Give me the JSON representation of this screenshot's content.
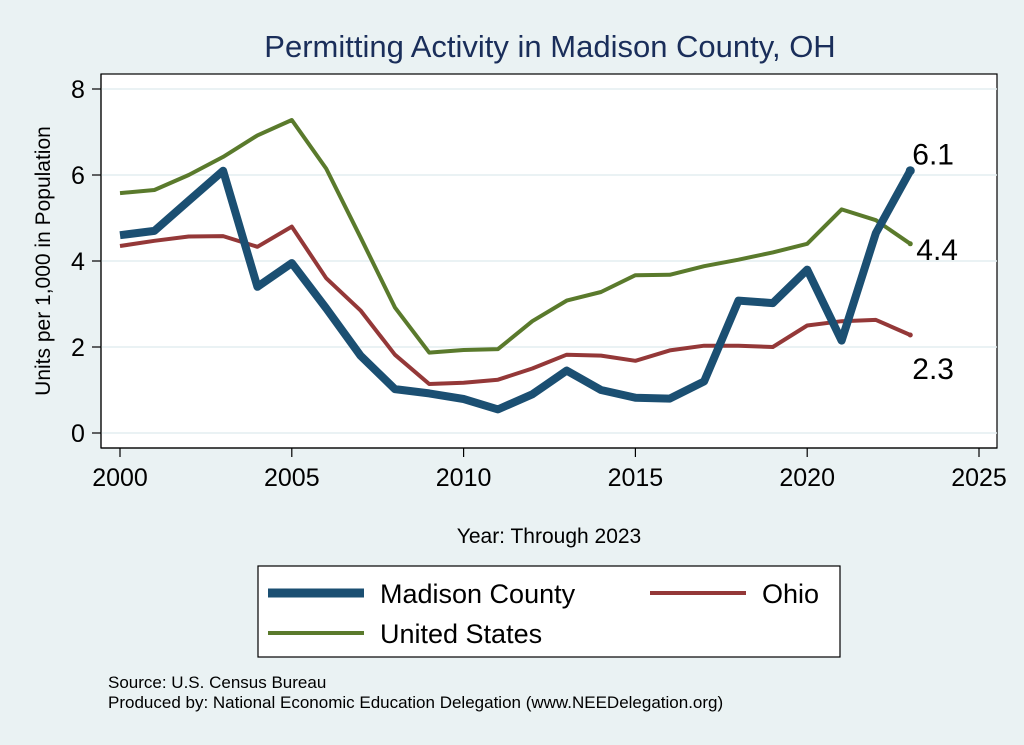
{
  "chart_data": {
    "type": "line",
    "title": "Permitting Activity in Madison County, OH",
    "xlabel": "Year: Through 2023",
    "ylabel": "Units per 1,000 in Population",
    "xlim": [
      2000,
      2025
    ],
    "ylim": [
      0,
      8
    ],
    "xticks": [
      2000,
      2005,
      2010,
      2015,
      2020,
      2025
    ],
    "yticks": [
      0,
      2,
      4,
      6,
      8
    ],
    "grid": true,
    "x": [
      2000,
      2001,
      2002,
      2003,
      2004,
      2005,
      2006,
      2007,
      2008,
      2009,
      2010,
      2011,
      2012,
      2013,
      2014,
      2015,
      2016,
      2017,
      2018,
      2019,
      2020,
      2021,
      2022,
      2023
    ],
    "series": [
      {
        "name": "Madison County",
        "color": "#1b4f72",
        "values": [
          4.6,
          4.7,
          5.4,
          6.1,
          3.4,
          3.95,
          2.9,
          1.8,
          1.02,
          0.92,
          0.79,
          0.55,
          0.9,
          1.45,
          1.0,
          0.82,
          0.8,
          1.2,
          3.08,
          3.02,
          3.8,
          2.15,
          4.65,
          6.1
        ],
        "end_label": "6.1"
      },
      {
        "name": "Ohio",
        "color": "#943838",
        "values": [
          4.35,
          4.47,
          4.57,
          4.58,
          4.33,
          4.8,
          3.6,
          2.85,
          1.82,
          1.14,
          1.17,
          1.24,
          1.5,
          1.82,
          1.8,
          1.68,
          1.92,
          2.03,
          2.03,
          2.0,
          2.5,
          2.6,
          2.63,
          2.28
        ],
        "end_label": "2.3"
      },
      {
        "name": "United States",
        "color": "#5a7a2c",
        "values": [
          5.58,
          5.65,
          6.0,
          6.42,
          6.92,
          7.28,
          6.15,
          4.55,
          2.92,
          1.87,
          1.93,
          1.95,
          2.6,
          3.08,
          3.28,
          3.67,
          3.68,
          3.88,
          4.03,
          4.2,
          4.4,
          5.2,
          4.95,
          4.4
        ],
        "end_label": "4.4"
      }
    ],
    "legend": {
      "placement": "bottom",
      "labels": [
        "Madison County",
        "Ohio",
        "United States"
      ]
    }
  },
  "source": {
    "line1": "Source: U.S. Census Bureau",
    "line2": "Produced by: National Economic Education Delegation (www.NEEDelegation.org)"
  }
}
